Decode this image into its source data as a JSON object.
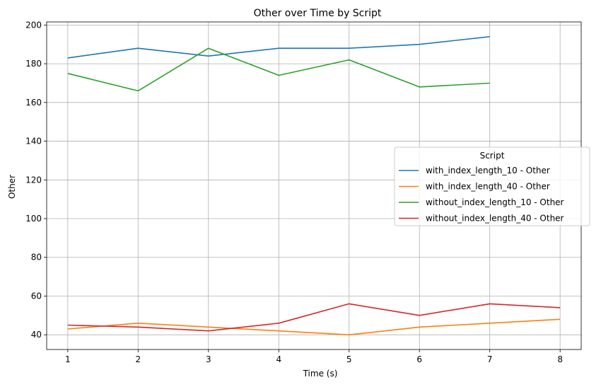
{
  "chart_data": {
    "type": "line",
    "title": "Other over Time by Script",
    "xlabel": "Time (s)",
    "ylabel": "Other",
    "xlim": [
      0.7,
      8.3
    ],
    "ylim": [
      32.4,
      201.6
    ],
    "xticks": [
      1,
      2,
      3,
      4,
      5,
      6,
      7,
      8
    ],
    "yticks": [
      40,
      60,
      80,
      100,
      120,
      140,
      160,
      180,
      200
    ],
    "grid": true,
    "legend": {
      "title": "Script",
      "placement": "center-right"
    },
    "series": [
      {
        "name": "with_index_length_10 - Other",
        "color": "#1f77b4",
        "x": [
          1,
          2,
          3,
          4,
          5,
          6,
          7
        ],
        "y": [
          183,
          188,
          184,
          188,
          188,
          190,
          194
        ]
      },
      {
        "name": "with_index_length_40 - Other",
        "color": "#ff7f0e",
        "x": [
          1,
          2,
          3,
          4,
          5,
          6,
          7,
          8
        ],
        "y": [
          43,
          46,
          44,
          42,
          40,
          44,
          46,
          48
        ]
      },
      {
        "name": "without_index_length_10 - Other",
        "color": "#2ca02c",
        "x": [
          1,
          2,
          3,
          4,
          5,
          6,
          7
        ],
        "y": [
          175,
          166,
          188,
          174,
          182,
          168,
          170
        ]
      },
      {
        "name": "without_index_length_40 - Other",
        "color": "#d62728",
        "x": [
          1,
          2,
          3,
          4,
          5,
          6,
          7,
          8
        ],
        "y": [
          45,
          44,
          42,
          46,
          56,
          50,
          56,
          54
        ]
      }
    ]
  }
}
